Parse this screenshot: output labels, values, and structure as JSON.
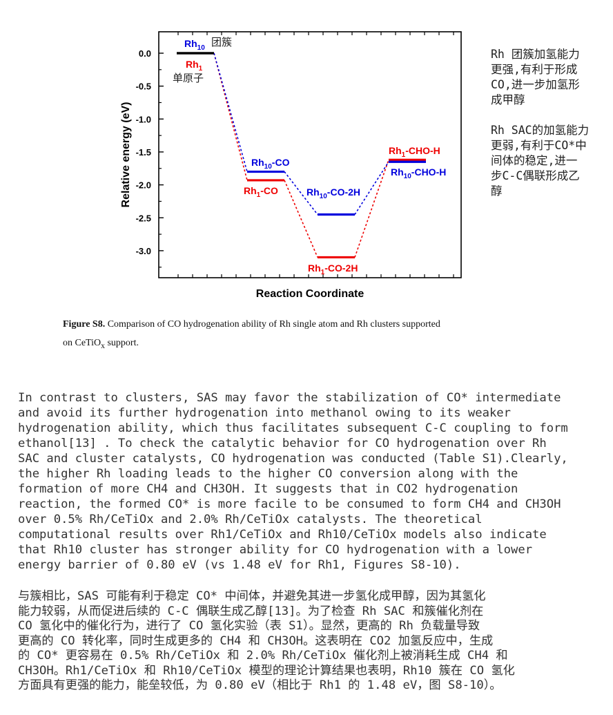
{
  "side_notes": [
    "Rh 团簇加氢能力\n更强,有利于形成\nCO,进一步加氢形\n成甲醇",
    "Rh SAC的加氢能力\n更弱,有利于CO*中\n间体的稳定,进一\n步C-C偶联形成乙\n醇"
  ],
  "caption": {
    "label": "Figure S8.",
    "text_line1": " Comparison of CO hydrogenation ability of Rh single atom and Rh clusters supported",
    "text_line2_prefix": "on CeTiO",
    "text_line2_sub": "x",
    "text_line2_suffix": " support."
  },
  "paragraph_en": "In contrast to clusters, SAS may favor the stabilization of CO* intermediate\nand avoid its further hydrogenation into methanol owing to its weaker\nhydrogenation ability, which thus facilitates subsequent C-C coupling to form\nethanol[13] . To check the catalytic behavior for CO hydrogenation over Rh\nSAC and cluster catalysts, CO hydrogenation was conducted (Table S1).Clearly,\nthe higher Rh loading leads to the higher CO conversion along with the\nformation of more CH4 and CH3OH. It suggests that in CO2 hydrogenation\nreaction, the formed CO* is more facile to be consumed to form CH4 and CH3OH\nover 0.5% Rh/CeTiOx and 2.0% Rh/CeTiOx catalysts. The theoretical\ncomputational results over Rh1/CeTiOx and Rh10/CeTiOx models also indicate\nthat Rh10 cluster has stronger ability for CO hydrogenation with a lower\nenergy barrier of 0.80 eV (vs 1.48 eV for Rh1, Figures S8-10).",
  "paragraph_zh": "与簇相比，SAS 可能有利于稳定 CO* 中间体，并避免其进一步氢化成甲醇，因为其氢化\n能力较弱，从而促进后续的 C-C 偶联生成乙醇[13]。为了检查 Rh SAC 和簇催化剂在\nCO 氢化中的催化行为，进行了 CO 氢化实验（表 S1）。显然，更高的 Rh 负载量导致\n更高的 CO 转化率，同时生成更多的 CH4 和 CH3OH。这表明在 CO2 加氢反应中，生成\n的 CO* 更容易在 0.5% Rh/CeTiOx 和 2.0% Rh/CeTiOx 催化剂上被消耗生成 CH4 和\nCH3OH。Rh1/CeTiOx 和 Rh10/CeTiOx 模型的理论计算结果也表明，Rh10 簇在 CO 氢化\n方面具有更强的能力，能垒较低，为 0.80 eV（相比于 Rh1 的 1.48 eV，图 S8-10）。",
  "chart_data": {
    "type": "line",
    "title": "",
    "xlabel": "Reaction Coordinate",
    "ylabel": "Relative energy (eV)",
    "ylim": [
      -3.4,
      0.35
    ],
    "yticks": [
      "0.0",
      "-0.5",
      "-1.0",
      "-1.5",
      "-2.0",
      "-2.5",
      "-3.0"
    ],
    "x_steps": [
      0,
      1,
      2,
      3
    ],
    "grid": false,
    "series": [
      {
        "name": "Rh10",
        "color": "#0000dd",
        "values": [
          0.0,
          -1.8,
          -2.45,
          -1.65
        ],
        "labels": [
          {
            "main": "Rh",
            "sub": "10",
            "rest": ""
          },
          {
            "main": "Rh",
            "sub": "10",
            "rest": "-CO"
          },
          {
            "main": "Rh",
            "sub": "10",
            "rest": "-CO-2H"
          },
          {
            "main": "Rh",
            "sub": "10",
            "rest": "-CHO-H"
          }
        ],
        "start_note": "团簇"
      },
      {
        "name": "Rh1",
        "color": "#ee0000",
        "values": [
          0.0,
          -1.93,
          -3.1,
          -1.62
        ],
        "labels": [
          {
            "main": "Rh",
            "sub": "1",
            "rest": ""
          },
          {
            "main": "Rh",
            "sub": "1",
            "rest": "-CO"
          },
          {
            "main": "Rh",
            "sub": "1",
            "rest": "-CO-2H"
          },
          {
            "main": "Rh",
            "sub": "1",
            "rest": "-CHO-H"
          }
        ],
        "start_note": "单原子"
      }
    ],
    "shared_start_color": "#000000"
  }
}
